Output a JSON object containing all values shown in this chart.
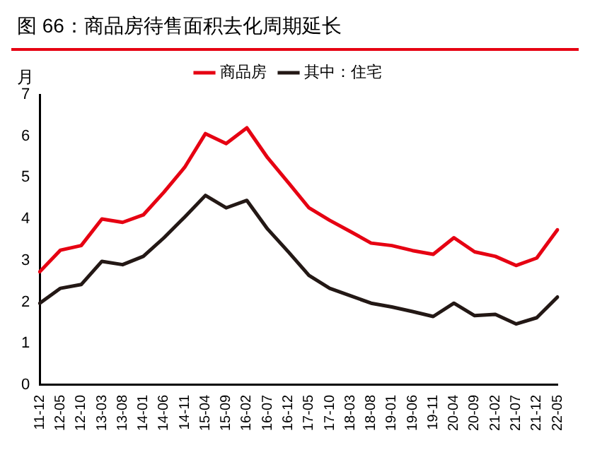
{
  "chart_data": {
    "type": "line",
    "title": "图 66：商品房待售面积去化周期延长",
    "ylabel": "月",
    "categories": [
      "11-12",
      "12-05",
      "12-10",
      "13-03",
      "13-08",
      "14-01",
      "14-06",
      "14-11",
      "15-04",
      "15-09",
      "16-02",
      "16-07",
      "16-12",
      "17-05",
      "17-10",
      "18-03",
      "18-08",
      "19-01",
      "19-06",
      "19-11",
      "20-04",
      "20-09",
      "21-02",
      "21-07",
      "21-12",
      "22-05"
    ],
    "series": [
      {
        "name": "商品房",
        "color": "#e60012",
        "values": [
          2.73,
          3.25,
          3.36,
          4.0,
          3.92,
          4.1,
          4.65,
          5.25,
          6.06,
          5.82,
          6.2,
          5.48,
          4.88,
          4.27,
          3.97,
          3.7,
          3.42,
          3.36,
          3.24,
          3.15,
          3.55,
          3.21,
          3.1,
          2.88,
          3.06,
          3.74
        ]
      },
      {
        "name": "其中：住宅",
        "color": "#231815",
        "values": [
          1.97,
          2.33,
          2.42,
          2.98,
          2.9,
          3.1,
          3.55,
          4.05,
          4.57,
          4.27,
          4.45,
          3.76,
          3.21,
          2.64,
          2.33,
          2.15,
          1.97,
          1.88,
          1.77,
          1.65,
          1.97,
          1.67,
          1.7,
          1.47,
          1.62,
          2.12
        ]
      }
    ],
    "ylim": [
      0,
      7
    ],
    "yticks": [
      0,
      1,
      2,
      3,
      4,
      5,
      6,
      7
    ],
    "grid": false,
    "legend": "top",
    "marker": "none",
    "line_style": "solid"
  }
}
